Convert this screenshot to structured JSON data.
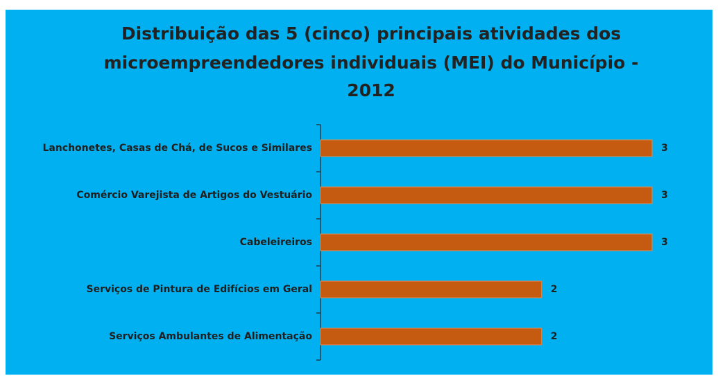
{
  "chart_data": {
    "type": "bar",
    "orientation": "horizontal",
    "title": [
      "Distribuição das 5 (cinco) principais atividades dos",
      "microempreendedores individuais (MEI) do Município -",
      "2012"
    ],
    "categories": [
      "Lanchonetes, Casas de Chá, de Sucos e Similares",
      "Comércio Varejista de Artigos do Vestuário",
      "Cabeleireiros",
      "Serviços de Pintura de Edifícios em Geral",
      "Serviços Ambulantes de Alimentação"
    ],
    "values": [
      3,
      3,
      3,
      2,
      2
    ],
    "color": "#c55a11",
    "background": "#00b0f0",
    "xlim": [
      0,
      3
    ]
  }
}
